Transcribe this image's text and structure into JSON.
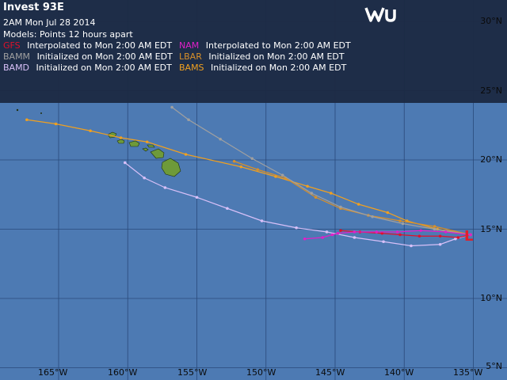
{
  "header": {
    "title": "Invest 93E",
    "date": "2AM  Mon Jul 28 2014",
    "models_label": "Models:  Points 12 hours apart"
  },
  "legend": {
    "row1": [
      {
        "model": "GFS",
        "color": "#e0102a",
        "text": "Interpolated to Mon 2:00 AM EDT"
      },
      {
        "model": "NAM",
        "color": "#e020c8",
        "text": "Interpolated to Mon 2:00 AM EDT"
      }
    ],
    "row2": [
      {
        "model": "BAMM",
        "color": "#a0a0a0",
        "text": "Initialized on Mon 2:00 AM EDT"
      },
      {
        "model": "LBAR",
        "color": "#d8902a",
        "text": "Initialized on Mon 2:00 AM EDT"
      }
    ],
    "row3": [
      {
        "model": "BAMD",
        "color": "#d8c0f8",
        "text": "Initialized on Mon 2:00 AM EDT"
      },
      {
        "model": "BAMS",
        "color": "#f0a020",
        "text": "Initialized on Mon 2:00 AM EDT"
      }
    ]
  },
  "storm_marker": "L",
  "lat_labels": [
    "30°N",
    "25°N",
    "20°N",
    "15°N",
    "10°N",
    "5°N"
  ],
  "lon_labels": [
    "165°W",
    "160°W",
    "155°W",
    "150°W",
    "145°W",
    "140°W",
    "135°W"
  ],
  "colors": {
    "ocean": "#4d7ab3",
    "land": "#6e9a3a",
    "storm": "#e0202a",
    "grid": "#2a4a7a"
  },
  "tracks": {
    "BAMS": {
      "color": "#f0a020",
      "points": [
        [
          -135.2,
          14.6
        ],
        [
          -137.6,
          15.0
        ],
        [
          -139.8,
          15.6
        ],
        [
          -141.2,
          16.2
        ],
        [
          -143.3,
          16.8
        ],
        [
          -145.3,
          17.6
        ],
        [
          -147.0,
          18.1
        ],
        [
          -149.3,
          18.8
        ],
        [
          -151.8,
          19.5
        ],
        [
          -155.8,
          20.4
        ],
        [
          -158.6,
          21.3
        ],
        [
          -160.5,
          21.6
        ],
        [
          -162.7,
          22.1
        ],
        [
          -165.2,
          22.6
        ],
        [
          -167.3,
          22.9
        ]
      ]
    },
    "LBAR": {
      "color": "#d8902a",
      "points": [
        [
          -135.2,
          14.6
        ],
        [
          -137.8,
          15.2
        ],
        [
          -140.3,
          15.6
        ],
        [
          -142.6,
          16.0
        ],
        [
          -144.6,
          16.5
        ],
        [
          -146.4,
          17.3
        ],
        [
          -148.6,
          18.7
        ],
        [
          -150.6,
          19.3
        ],
        [
          -152.3,
          19.9
        ]
      ]
    },
    "BAMM": {
      "color": "#a0a0a0",
      "points": [
        [
          -135.2,
          14.6
        ],
        [
          -137.8,
          15.0
        ],
        [
          -140.1,
          15.4
        ],
        [
          -142.3,
          15.9
        ],
        [
          -144.6,
          16.6
        ],
        [
          -146.7,
          17.6
        ],
        [
          -148.8,
          18.9
        ],
        [
          -151.0,
          20.1
        ],
        [
          -153.3,
          21.5
        ],
        [
          -155.6,
          22.9
        ],
        [
          -156.8,
          23.8
        ]
      ]
    },
    "BAMD": {
      "color": "#d8c0f8",
      "points": [
        [
          -135.2,
          14.6
        ],
        [
          -136.3,
          14.3
        ],
        [
          -137.4,
          13.9
        ],
        [
          -139.5,
          13.8
        ],
        [
          -141.5,
          14.1
        ],
        [
          -143.6,
          14.4
        ],
        [
          -145.6,
          14.8
        ],
        [
          -147.8,
          15.1
        ],
        [
          -150.3,
          15.6
        ],
        [
          -152.8,
          16.5
        ],
        [
          -155.0,
          17.3
        ],
        [
          -157.3,
          18.0
        ],
        [
          -158.8,
          18.7
        ],
        [
          -160.2,
          19.8
        ]
      ]
    },
    "GFS": {
      "color": "#e0102a",
      "points": [
        [
          -135.2,
          14.6
        ],
        [
          -136.1,
          14.4
        ],
        [
          -137.4,
          14.5
        ],
        [
          -138.9,
          14.5
        ],
        [
          -140.3,
          14.6
        ],
        [
          -141.6,
          14.7
        ],
        [
          -143.2,
          14.8
        ],
        [
          -144.6,
          14.9
        ]
      ]
    },
    "NAM": {
      "color": "#e020c8",
      "points": [
        [
          -135.2,
          14.6
        ],
        [
          -137.0,
          14.8
        ],
        [
          -138.8,
          14.9
        ],
        [
          -140.5,
          14.8
        ],
        [
          -142.0,
          14.8
        ],
        [
          -143.6,
          14.8
        ],
        [
          -144.8,
          14.7
        ],
        [
          -145.2,
          14.6
        ],
        [
          -145.9,
          14.4
        ],
        [
          -147.2,
          14.3
        ]
      ]
    }
  }
}
